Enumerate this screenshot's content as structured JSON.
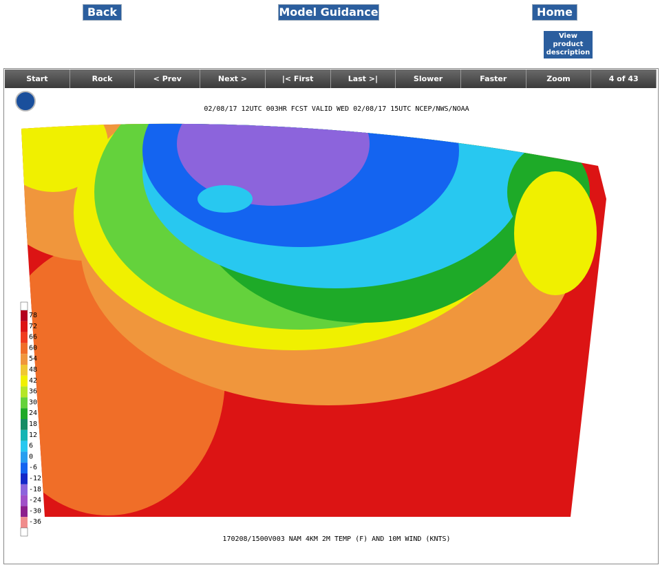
{
  "nav": {
    "back": "Back",
    "model_guidance": "Model Guidance",
    "home": "Home",
    "description": "View product description"
  },
  "toolbar": [
    "Start",
    "Rock",
    "< Prev",
    "Next >",
    "|< First",
    "Last >|",
    "Slower",
    "Faster",
    "Zoom",
    "4 of 43"
  ],
  "map": {
    "header": "02/08/17 12UTC  003HR  FCST VALID WED 02/08/17 15UTC   NCEP/NWS/NOAA",
    "footer": "170208/1500V003 NAM 4KM 2M TEMP (F) AND 10M WIND (KNTS)",
    "legend": {
      "labels": [
        78,
        72,
        66,
        60,
        54,
        48,
        42,
        36,
        30,
        24,
        18,
        12,
        6,
        0,
        -6,
        -12,
        -18,
        -24,
        -30,
        -36
      ],
      "colors": [
        "#b4001e",
        "#dc1414",
        "#f03c1e",
        "#f06e28",
        "#f0963c",
        "#f0c832",
        "#f0f000",
        "#b4e628",
        "#64d23c",
        "#1eaa28",
        "#148c64",
        "#14b4b4",
        "#28c8f0",
        "#289ef0",
        "#1464f0",
        "#1428c8",
        "#8c64dc",
        "#a050c8",
        "#8c1e8c",
        "#f08c8c"
      ]
    }
  }
}
